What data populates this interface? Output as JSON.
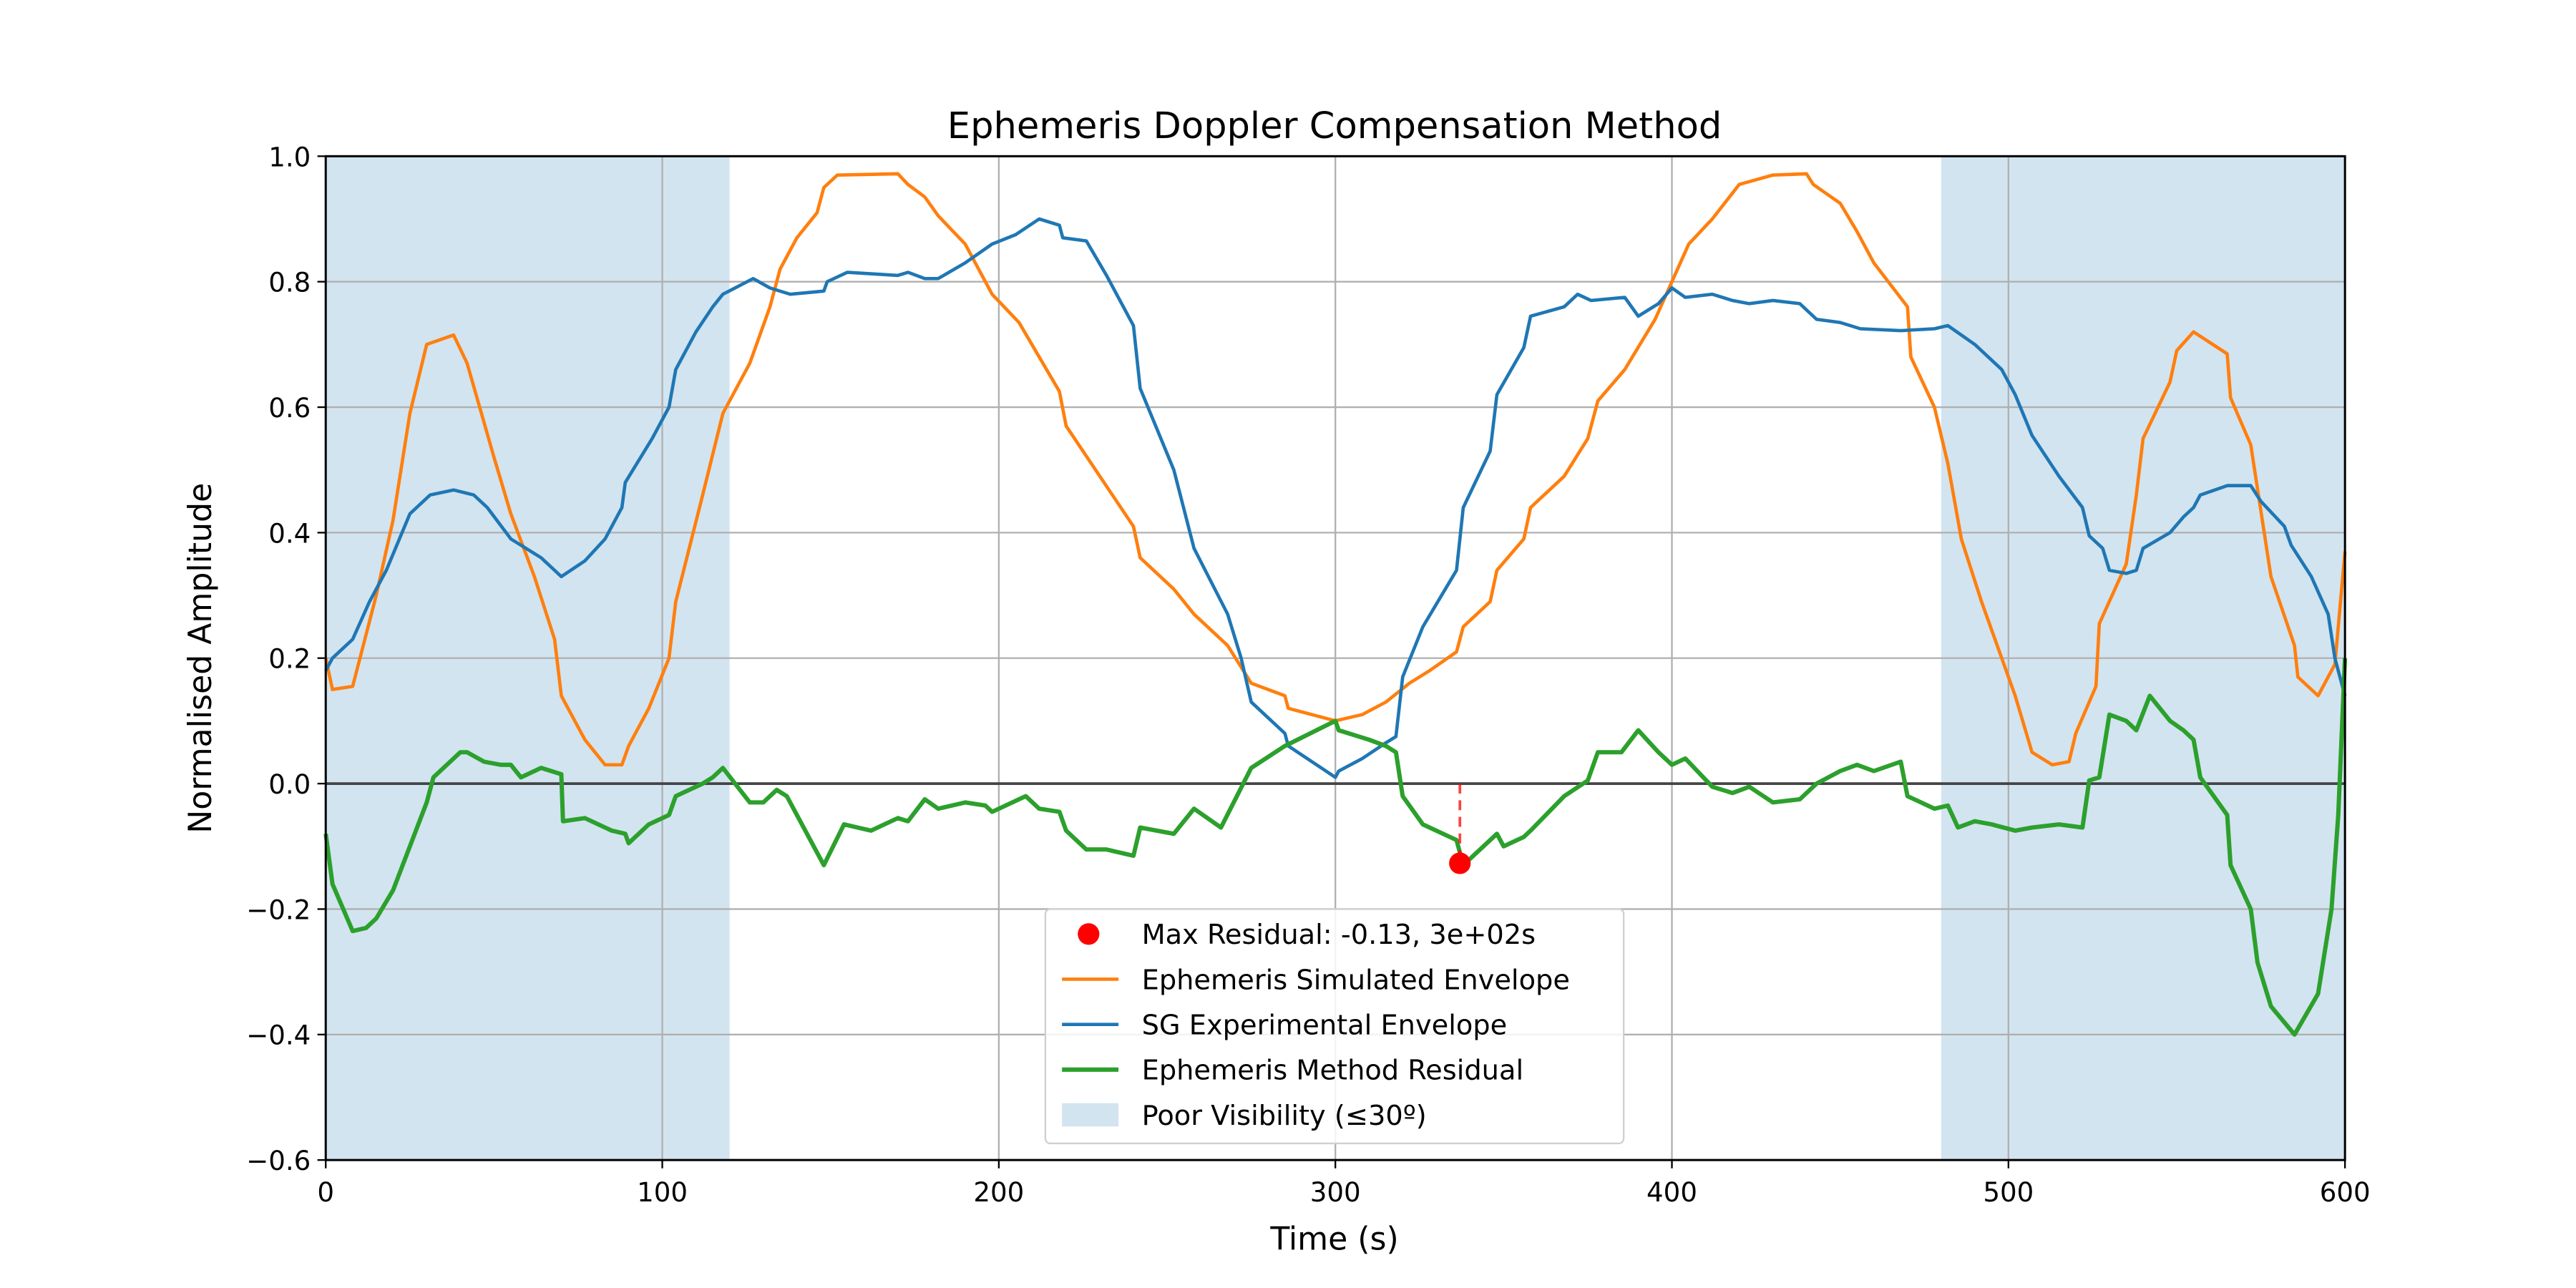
{
  "chart_data": {
    "type": "line",
    "title": "Ephemeris Doppler Compensation Method",
    "xlabel": "Time (s)",
    "ylabel": "Normalised Amplitude",
    "xlim": [
      0,
      600
    ],
    "ylim": [
      -0.6,
      1.0
    ],
    "xticks": [
      0,
      100,
      200,
      300,
      400,
      500,
      600
    ],
    "yticks": [
      {
        "value": -0.6,
        "label": "−0.6"
      },
      {
        "value": -0.4,
        "label": "−0.4"
      },
      {
        "value": -0.2,
        "label": "−0.2"
      },
      {
        "value": 0,
        "label": "0.0"
      },
      {
        "value": 0.2,
        "label": "0.2"
      },
      {
        "value": 0.4,
        "label": "0.4"
      },
      {
        "value": 0.6,
        "label": "0.6"
      },
      {
        "value": 0.8,
        "label": "0.8"
      },
      {
        "value": 1.0,
        "label": "1.0"
      }
    ],
    "grid": true,
    "legend": "lower center",
    "reference_line": {
      "y": 0,
      "color": "#444444"
    },
    "spans": {
      "name": "Poor Visibility (≤30º)",
      "color": "#1f77b4",
      "opacity": 0.2,
      "ranges": [
        [
          0,
          120
        ],
        [
          480,
          600
        ]
      ]
    },
    "marker": {
      "name": "Max Residual: -0.13, 3e+02s",
      "x": 337,
      "y": -0.127,
      "color": "#ff0000"
    },
    "series": [
      {
        "name": "Ephemeris Simulated Envelope",
        "color": "#ff7f0e",
        "x": [
          0,
          2,
          8,
          15,
          20,
          25,
          30,
          38,
          42,
          50,
          55,
          62,
          68,
          70,
          77,
          83,
          88,
          90,
          96,
          102,
          104,
          112,
          118,
          126,
          132,
          135,
          140,
          146,
          148,
          152,
          170,
          173,
          178,
          182,
          190,
          198,
          206,
          212,
          218,
          220,
          230,
          240,
          242,
          252,
          258,
          268,
          275,
          285,
          286,
          300,
          308,
          315,
          322,
          328,
          336,
          338,
          346,
          348,
          356,
          358,
          368,
          375,
          378,
          386,
          395,
          405,
          412,
          420,
          430,
          440,
          442,
          450,
          455,
          460,
          470,
          471,
          478,
          482,
          486,
          492,
          502,
          507,
          513,
          518,
          520,
          526,
          527,
          535,
          538,
          540,
          548,
          550,
          555,
          565,
          566,
          572,
          578,
          585,
          586,
          592,
          597,
          600
        ],
        "values": [
          0.2,
          0.15,
          0.155,
          0.3,
          0.42,
          0.59,
          0.7,
          0.715,
          0.67,
          0.52,
          0.43,
          0.33,
          0.23,
          0.14,
          0.07,
          0.03,
          0.03,
          0.06,
          0.12,
          0.2,
          0.29,
          0.46,
          0.59,
          0.67,
          0.76,
          0.82,
          0.87,
          0.91,
          0.95,
          0.97,
          0.972,
          0.955,
          0.935,
          0.905,
          0.86,
          0.78,
          0.735,
          0.68,
          0.625,
          0.57,
          0.49,
          0.41,
          0.36,
          0.31,
          0.27,
          0.22,
          0.16,
          0.14,
          0.12,
          0.1,
          0.11,
          0.13,
          0.16,
          0.18,
          0.21,
          0.25,
          0.29,
          0.34,
          0.39,
          0.44,
          0.49,
          0.55,
          0.61,
          0.66,
          0.74,
          0.86,
          0.9,
          0.955,
          0.97,
          0.972,
          0.955,
          0.925,
          0.88,
          0.83,
          0.76,
          0.68,
          0.6,
          0.51,
          0.39,
          0.29,
          0.14,
          0.05,
          0.03,
          0.035,
          0.08,
          0.155,
          0.255,
          0.35,
          0.46,
          0.55,
          0.64,
          0.69,
          0.72,
          0.685,
          0.615,
          0.54,
          0.33,
          0.22,
          0.17,
          0.14,
          0.19,
          0.37
        ]
      },
      {
        "name": "SG Experimental Envelope",
        "color": "#1f77b4",
        "x": [
          0,
          2,
          8,
          13,
          18,
          25,
          31,
          38,
          44,
          48,
          55,
          58,
          64,
          70,
          77,
          83,
          88,
          89,
          97,
          102,
          104,
          110,
          115,
          118,
          127,
          132,
          138,
          148,
          149,
          155,
          170,
          173,
          178,
          182,
          190,
          198,
          205,
          212,
          218,
          219,
          226,
          232,
          240,
          242,
          252,
          258,
          268,
          272,
          275,
          285,
          286,
          300,
          301,
          308,
          315,
          318,
          320,
          326,
          336,
          338,
          346,
          348,
          356,
          358,
          368,
          372,
          376,
          386,
          390,
          396,
          400,
          404,
          412,
          418,
          423,
          430,
          438,
          443,
          450,
          456,
          468,
          478,
          482,
          490,
          498,
          502,
          507,
          515,
          522,
          524,
          528,
          530,
          535,
          538,
          540,
          548,
          552,
          555,
          557,
          565,
          572,
          575,
          582,
          584,
          590,
          595,
          597,
          600
        ],
        "values": [
          0.18,
          0.2,
          0.23,
          0.29,
          0.34,
          0.43,
          0.46,
          0.468,
          0.46,
          0.44,
          0.39,
          0.38,
          0.36,
          0.33,
          0.355,
          0.39,
          0.44,
          0.48,
          0.55,
          0.6,
          0.66,
          0.72,
          0.76,
          0.78,
          0.805,
          0.79,
          0.78,
          0.785,
          0.8,
          0.815,
          0.81,
          0.815,
          0.805,
          0.805,
          0.83,
          0.86,
          0.875,
          0.9,
          0.89,
          0.87,
          0.865,
          0.81,
          0.73,
          0.63,
          0.5,
          0.375,
          0.27,
          0.2,
          0.13,
          0.08,
          0.06,
          0.01,
          0.02,
          0.04,
          0.065,
          0.075,
          0.17,
          0.25,
          0.34,
          0.44,
          0.53,
          0.62,
          0.695,
          0.745,
          0.76,
          0.78,
          0.77,
          0.775,
          0.745,
          0.765,
          0.79,
          0.775,
          0.78,
          0.77,
          0.765,
          0.77,
          0.765,
          0.74,
          0.735,
          0.725,
          0.722,
          0.725,
          0.73,
          0.7,
          0.66,
          0.62,
          0.555,
          0.49,
          0.44,
          0.395,
          0.375,
          0.34,
          0.335,
          0.34,
          0.375,
          0.4,
          0.425,
          0.44,
          0.46,
          0.475,
          0.475,
          0.45,
          0.41,
          0.38,
          0.33,
          0.27,
          0.2,
          0.14
        ]
      },
      {
        "name": "Ephemeris Method Residual",
        "color": "#2ca02c",
        "x": [
          0,
          2,
          8,
          12,
          15,
          20,
          25,
          30,
          32,
          40,
          42,
          47,
          52,
          55,
          58,
          64,
          70,
          70.5,
          77,
          85,
          89,
          90,
          96,
          102,
          104,
          112,
          115,
          118,
          126,
          130,
          134,
          137,
          148,
          154,
          162,
          170,
          173,
          178,
          182,
          190,
          196,
          198,
          206,
          208,
          212,
          218,
          220,
          226,
          232,
          240,
          242,
          252,
          258,
          266,
          275,
          285,
          300,
          301,
          310,
          315,
          318,
          320,
          326,
          336,
          338,
          346,
          348,
          350,
          356,
          358,
          368,
          375,
          378,
          385,
          390,
          396,
          400,
          404,
          412,
          418,
          423,
          430,
          438,
          443,
          450,
          455,
          460,
          468,
          470,
          478,
          482,
          485,
          490,
          495,
          502,
          507,
          515,
          522,
          524,
          527,
          530,
          535,
          538,
          542,
          548,
          552,
          555,
          557,
          565,
          566,
          572,
          574,
          578,
          585,
          592,
          596,
          598,
          600
        ],
        "values": [
          -0.08,
          -0.16,
          -0.235,
          -0.23,
          -0.215,
          -0.17,
          -0.1,
          -0.03,
          0.01,
          0.05,
          0.05,
          0.035,
          0.03,
          0.03,
          0.01,
          0.025,
          0.015,
          -0.06,
          -0.055,
          -0.075,
          -0.08,
          -0.095,
          -0.065,
          -0.05,
          -0.02,
          0,
          0.01,
          0.025,
          -0.03,
          -0.03,
          -0.01,
          -0.02,
          -0.13,
          -0.065,
          -0.075,
          -0.055,
          -0.06,
          -0.025,
          -0.04,
          -0.03,
          -0.035,
          -0.045,
          -0.025,
          -0.02,
          -0.04,
          -0.045,
          -0.075,
          -0.105,
          -0.105,
          -0.115,
          -0.07,
          -0.08,
          -0.04,
          -0.07,
          0.025,
          0.06,
          0.1,
          0.085,
          0.07,
          0.06,
          0.05,
          -0.02,
          -0.065,
          -0.09,
          -0.13,
          -0.09,
          -0.08,
          -0.1,
          -0.085,
          -0.075,
          -0.02,
          0.005,
          0.05,
          0.05,
          0.085,
          0.05,
          0.03,
          0.04,
          -0.005,
          -0.015,
          -0.005,
          -0.03,
          -0.025,
          0,
          0.02,
          0.03,
          0.02,
          0.035,
          -0.02,
          -0.04,
          -0.035,
          -0.07,
          -0.06,
          -0.065,
          -0.075,
          -0.07,
          -0.065,
          -0.07,
          0.005,
          0.01,
          0.11,
          0.1,
          0.085,
          0.14,
          0.1,
          0.085,
          0.07,
          0.01,
          -0.05,
          -0.13,
          -0.2,
          -0.285,
          -0.355,
          -0.4,
          -0.335,
          -0.2,
          -0.05,
          0.2
        ]
      }
    ]
  }
}
